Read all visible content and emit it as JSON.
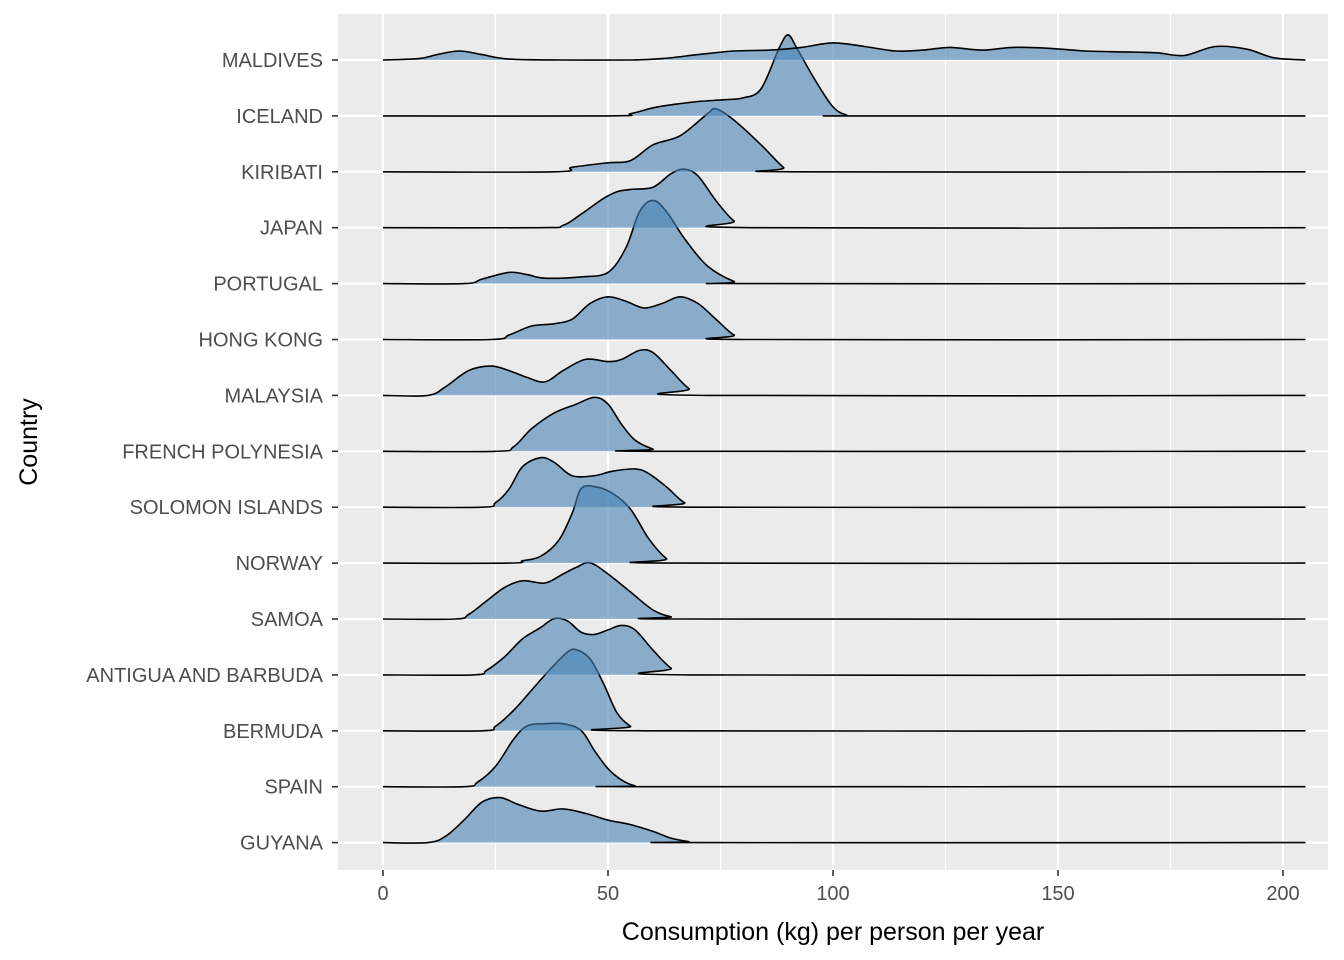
{
  "chart_data": {
    "type": "ridgeline",
    "title": "",
    "xlabel": "Consumption (kg) per person per year",
    "ylabel": "Country",
    "xlim": [
      -10,
      210
    ],
    "x_ticks": [
      0,
      50,
      100,
      150,
      200
    ],
    "grid": true,
    "colors": {
      "panel": "#ebebeb",
      "grid": "#ffffff",
      "fill": "#4682b4",
      "fill_opacity": 0.6,
      "outline": "#000000",
      "tick_label": "#4d4d4d",
      "axis_title": "#000000"
    },
    "countries": [
      {
        "name": "MALDIVES",
        "density": [
          [
            0,
            0
          ],
          [
            8,
            0.03
          ],
          [
            12,
            0.12
          ],
          [
            17,
            0.2
          ],
          [
            22,
            0.12
          ],
          [
            28,
            0.02
          ],
          [
            40,
            0
          ],
          [
            55,
            0
          ],
          [
            62,
            0.03
          ],
          [
            70,
            0.12
          ],
          [
            78,
            0.2
          ],
          [
            86,
            0.22
          ],
          [
            93,
            0.28
          ],
          [
            100,
            0.38
          ],
          [
            107,
            0.3
          ],
          [
            114,
            0.2
          ],
          [
            120,
            0.22
          ],
          [
            126,
            0.28
          ],
          [
            133,
            0.22
          ],
          [
            140,
            0.28
          ],
          [
            148,
            0.26
          ],
          [
            156,
            0.2
          ],
          [
            165,
            0.18
          ],
          [
            172,
            0.16
          ],
          [
            178,
            0.1
          ],
          [
            185,
            0.3
          ],
          [
            192,
            0.24
          ],
          [
            198,
            0.05
          ],
          [
            205,
            0
          ]
        ]
      },
      {
        "name": "ICELAND",
        "density": [
          [
            0,
            0
          ],
          [
            50,
            0
          ],
          [
            55,
            0.05
          ],
          [
            60,
            0.18
          ],
          [
            65,
            0.26
          ],
          [
            70,
            0.32
          ],
          [
            76,
            0.36
          ],
          [
            80,
            0.4
          ],
          [
            84,
            0.6
          ],
          [
            88,
            1.5
          ],
          [
            90,
            1.8
          ],
          [
            92,
            1.5
          ],
          [
            96,
            0.8
          ],
          [
            100,
            0.2
          ],
          [
            103,
            0.02
          ],
          [
            106,
            0
          ],
          [
            205,
            0
          ]
        ]
      },
      {
        "name": "KIRIBATI",
        "density": [
          [
            0,
            0
          ],
          [
            38,
            0
          ],
          [
            42,
            0.1
          ],
          [
            50,
            0.2
          ],
          [
            55,
            0.25
          ],
          [
            60,
            0.6
          ],
          [
            66,
            0.8
          ],
          [
            72,
            1.28
          ],
          [
            74,
            1.4
          ],
          [
            78,
            1.15
          ],
          [
            84,
            0.6
          ],
          [
            89,
            0.1
          ],
          [
            92,
            0
          ],
          [
            205,
            0
          ]
        ]
      },
      {
        "name": "JAPAN",
        "density": [
          [
            0,
            0
          ],
          [
            35,
            0
          ],
          [
            40,
            0.05
          ],
          [
            44,
            0.3
          ],
          [
            49,
            0.65
          ],
          [
            52,
            0.8
          ],
          [
            55,
            0.85
          ],
          [
            60,
            0.9
          ],
          [
            64,
            1.2
          ],
          [
            67,
            1.3
          ],
          [
            70,
            1.15
          ],
          [
            74,
            0.6
          ],
          [
            78,
            0.15
          ],
          [
            82,
            0
          ],
          [
            205,
            0
          ]
        ]
      },
      {
        "name": "PORTUGAL",
        "density": [
          [
            0,
            0
          ],
          [
            18,
            0
          ],
          [
            22,
            0.1
          ],
          [
            28,
            0.25
          ],
          [
            32,
            0.2
          ],
          [
            36,
            0.12
          ],
          [
            44,
            0.15
          ],
          [
            50,
            0.25
          ],
          [
            54,
            0.8
          ],
          [
            57,
            1.6
          ],
          [
            60,
            1.85
          ],
          [
            63,
            1.6
          ],
          [
            67,
            1.0
          ],
          [
            72,
            0.4
          ],
          [
            78,
            0.05
          ],
          [
            82,
            0
          ],
          [
            205,
            0
          ]
        ]
      },
      {
        "name": "HONG KONG",
        "density": [
          [
            0,
            0
          ],
          [
            24,
            0
          ],
          [
            28,
            0.1
          ],
          [
            33,
            0.3
          ],
          [
            38,
            0.35
          ],
          [
            42,
            0.45
          ],
          [
            46,
            0.8
          ],
          [
            50,
            0.95
          ],
          [
            54,
            0.85
          ],
          [
            58,
            0.7
          ],
          [
            62,
            0.8
          ],
          [
            66,
            0.95
          ],
          [
            70,
            0.8
          ],
          [
            74,
            0.45
          ],
          [
            78,
            0.1
          ],
          [
            82,
            0
          ],
          [
            205,
            0
          ]
        ]
      },
      {
        "name": "MALAYSIA",
        "density": [
          [
            0,
            0
          ],
          [
            10,
            0
          ],
          [
            14,
            0.2
          ],
          [
            19,
            0.55
          ],
          [
            24,
            0.65
          ],
          [
            28,
            0.55
          ],
          [
            32,
            0.4
          ],
          [
            36,
            0.3
          ],
          [
            40,
            0.55
          ],
          [
            45,
            0.8
          ],
          [
            50,
            0.75
          ],
          [
            53,
            0.8
          ],
          [
            57,
            1.0
          ],
          [
            60,
            0.95
          ],
          [
            64,
            0.55
          ],
          [
            68,
            0.15
          ],
          [
            72,
            0
          ],
          [
            205,
            0
          ]
        ]
      },
      {
        "name": "FRENCH POLYNESIA",
        "density": [
          [
            0,
            0
          ],
          [
            25,
            0
          ],
          [
            29,
            0.1
          ],
          [
            33,
            0.5
          ],
          [
            38,
            0.85
          ],
          [
            43,
            1.05
          ],
          [
            47,
            1.2
          ],
          [
            50,
            1.05
          ],
          [
            53,
            0.6
          ],
          [
            56,
            0.25
          ],
          [
            60,
            0.05
          ],
          [
            63,
            0
          ],
          [
            205,
            0
          ]
        ]
      },
      {
        "name": "SOLOMON ISLANDS",
        "density": [
          [
            0,
            0
          ],
          [
            22,
            0
          ],
          [
            25,
            0.1
          ],
          [
            28,
            0.4
          ],
          [
            31,
            0.9
          ],
          [
            35,
            1.1
          ],
          [
            38,
            1.0
          ],
          [
            42,
            0.7
          ],
          [
            47,
            0.7
          ],
          [
            51,
            0.8
          ],
          [
            56,
            0.85
          ],
          [
            59,
            0.75
          ],
          [
            63,
            0.45
          ],
          [
            67,
            0.1
          ],
          [
            71,
            0
          ],
          [
            205,
            0
          ]
        ]
      },
      {
        "name": "NORWAY",
        "density": [
          [
            0,
            0
          ],
          [
            28,
            0
          ],
          [
            31,
            0.05
          ],
          [
            35,
            0.15
          ],
          [
            39,
            0.5
          ],
          [
            42,
            1.1
          ],
          [
            44,
            1.65
          ],
          [
            47,
            1.7
          ],
          [
            51,
            1.55
          ],
          [
            55,
            1.2
          ],
          [
            59,
            0.55
          ],
          [
            63,
            0.1
          ],
          [
            66,
            0
          ],
          [
            205,
            0
          ]
        ]
      },
      {
        "name": "SAMOA",
        "density": [
          [
            0,
            0
          ],
          [
            16,
            0
          ],
          [
            19,
            0.1
          ],
          [
            23,
            0.4
          ],
          [
            27,
            0.7
          ],
          [
            31,
            0.85
          ],
          [
            36,
            0.8
          ],
          [
            40,
            1.0
          ],
          [
            43,
            1.15
          ],
          [
            46,
            1.25
          ],
          [
            50,
            1.0
          ],
          [
            55,
            0.6
          ],
          [
            60,
            0.2
          ],
          [
            64,
            0.05
          ],
          [
            68,
            0
          ],
          [
            205,
            0
          ]
        ]
      },
      {
        "name": "ANTIGUA AND BARBUDA",
        "density": [
          [
            0,
            0
          ],
          [
            20,
            0
          ],
          [
            23,
            0.1
          ],
          [
            27,
            0.4
          ],
          [
            31,
            0.8
          ],
          [
            35,
            1.05
          ],
          [
            38,
            1.25
          ],
          [
            41,
            1.2
          ],
          [
            44,
            0.95
          ],
          [
            47,
            0.9
          ],
          [
            50,
            1.0
          ],
          [
            53,
            1.1
          ],
          [
            56,
            1.0
          ],
          [
            60,
            0.55
          ],
          [
            64,
            0.15
          ],
          [
            68,
            0
          ],
          [
            205,
            0
          ]
        ]
      },
      {
        "name": "BERMUDA",
        "density": [
          [
            0,
            0
          ],
          [
            22,
            0
          ],
          [
            25,
            0.1
          ],
          [
            29,
            0.45
          ],
          [
            33,
            0.9
          ],
          [
            37,
            1.35
          ],
          [
            41,
            1.75
          ],
          [
            43,
            1.8
          ],
          [
            46,
            1.6
          ],
          [
            49,
            1.05
          ],
          [
            52,
            0.4
          ],
          [
            55,
            0.1
          ],
          [
            58,
            0
          ],
          [
            205,
            0
          ]
        ]
      },
      {
        "name": "SPAIN",
        "density": [
          [
            0,
            0
          ],
          [
            18,
            0
          ],
          [
            21,
            0.1
          ],
          [
            25,
            0.45
          ],
          [
            29,
            1.05
          ],
          [
            32,
            1.35
          ],
          [
            36,
            1.4
          ],
          [
            40,
            1.4
          ],
          [
            44,
            1.25
          ],
          [
            47,
            0.8
          ],
          [
            50,
            0.4
          ],
          [
            53,
            0.15
          ],
          [
            56,
            0.02
          ],
          [
            59,
            0
          ],
          [
            205,
            0
          ]
        ]
      },
      {
        "name": "GUYANA",
        "density": [
          [
            0,
            0
          ],
          [
            10,
            0
          ],
          [
            14,
            0.15
          ],
          [
            18,
            0.5
          ],
          [
            22,
            0.9
          ],
          [
            26,
            1.0
          ],
          [
            30,
            0.85
          ],
          [
            35,
            0.7
          ],
          [
            40,
            0.75
          ],
          [
            45,
            0.65
          ],
          [
            50,
            0.5
          ],
          [
            55,
            0.4
          ],
          [
            60,
            0.25
          ],
          [
            64,
            0.1
          ],
          [
            68,
            0.02
          ],
          [
            70,
            0
          ],
          [
            205,
            0
          ]
        ]
      }
    ]
  }
}
